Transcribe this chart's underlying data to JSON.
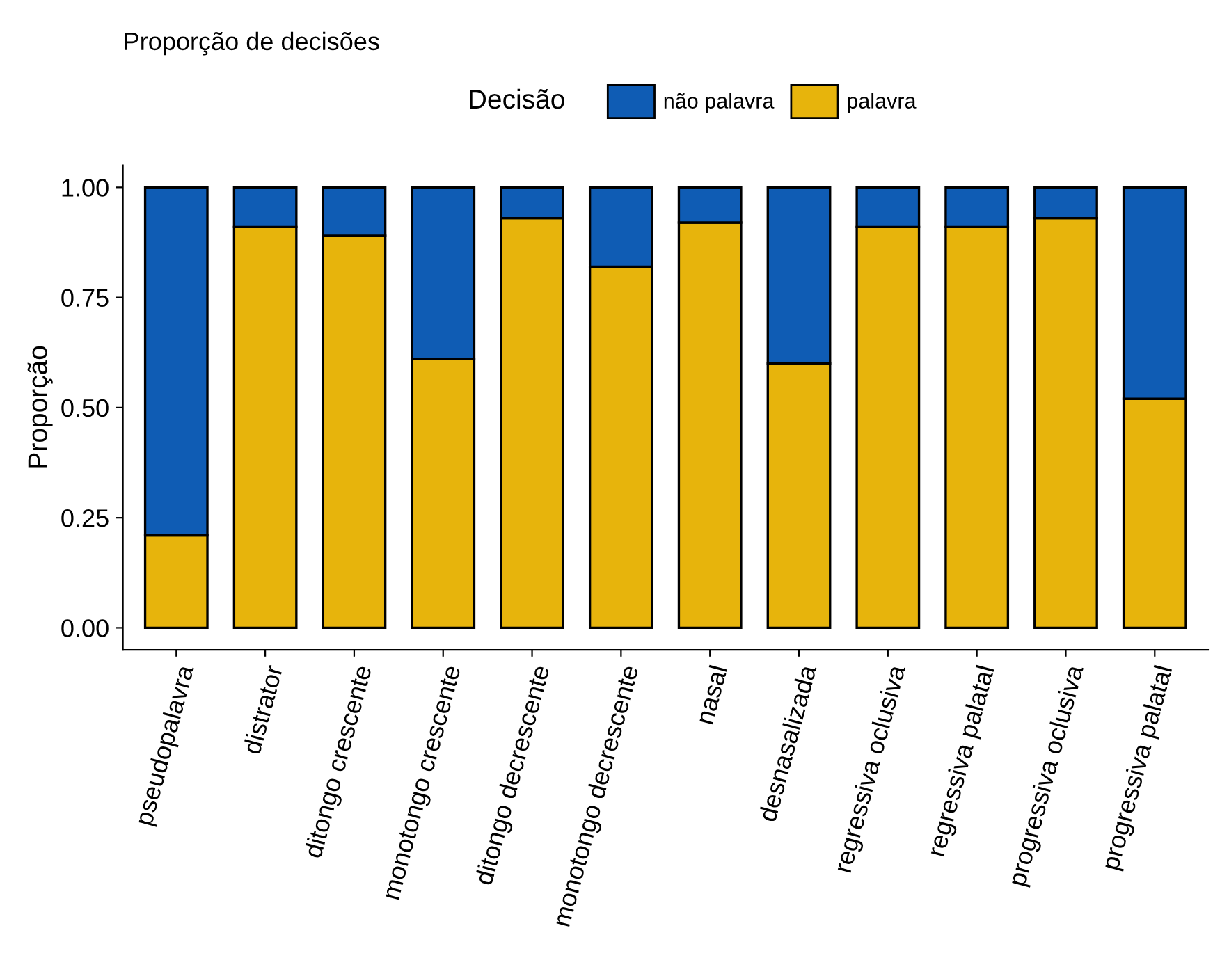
{
  "chart_data": {
    "type": "bar",
    "title": "Proporção de decisões",
    "ylabel": "Proporção",
    "legend_title": "Decisão",
    "legend": "top",
    "stacked": true,
    "grid": false,
    "categories": [
      "pseudopalavra",
      "distrator",
      "ditongo crescente",
      "monotongo crescente",
      "ditongo decrescente",
      "monotongo decrescente",
      "nasal",
      "desnasalizada",
      "regressiva oclusiva",
      "regressiva palatal",
      "progressiva oclusiva",
      "progressiva palatal"
    ],
    "series": [
      {
        "name": "palavra",
        "color": "#e7b40c",
        "values": [
          0.21,
          0.91,
          0.89,
          0.61,
          0.93,
          0.82,
          0.92,
          0.6,
          0.91,
          0.91,
          0.93,
          0.52
        ]
      },
      {
        "name": "não palavra",
        "color": "#0f5cb4",
        "values": [
          0.79,
          0.09,
          0.11,
          0.39,
          0.07,
          0.18,
          0.08,
          0.4,
          0.09,
          0.09,
          0.07,
          0.48
        ]
      }
    ],
    "ylim": [
      -0.05,
      1.05
    ],
    "yticks": [
      {
        "value": 0,
        "label": "0.00"
      },
      {
        "value": 0.25,
        "label": "0.25"
      },
      {
        "value": 0.5,
        "label": "0.50"
      },
      {
        "value": 0.75,
        "label": "0.75"
      },
      {
        "value": 1,
        "label": "1.00"
      }
    ]
  }
}
